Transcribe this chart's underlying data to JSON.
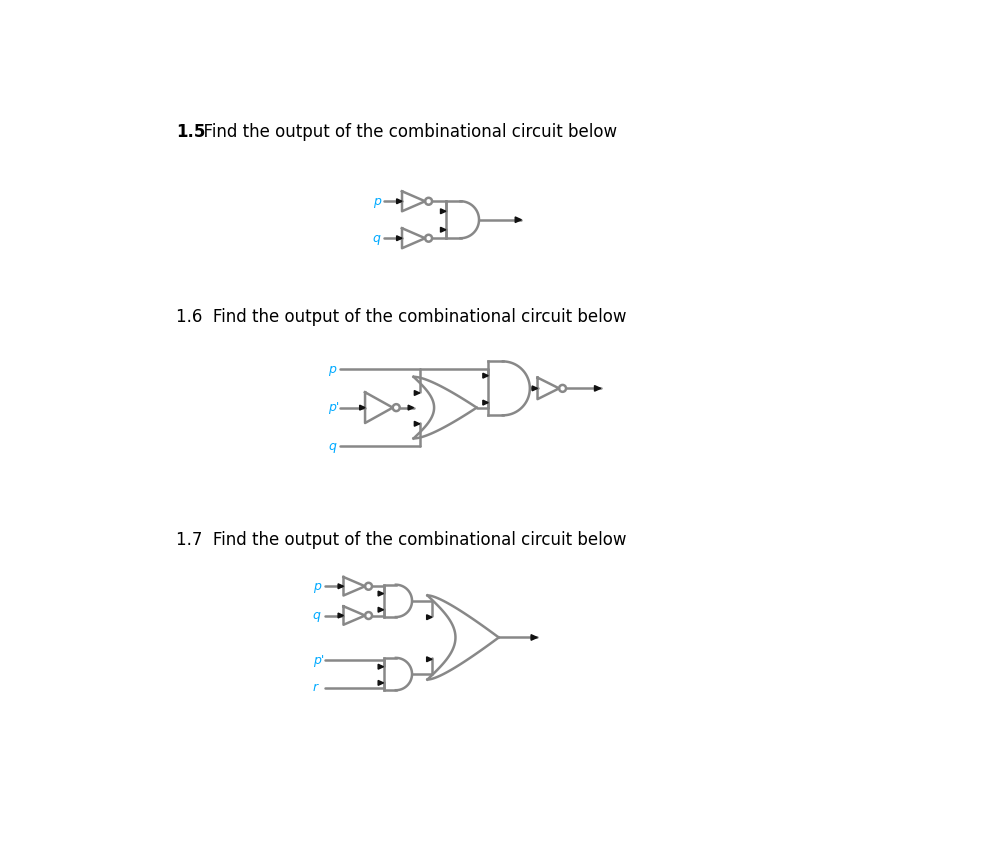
{
  "title15": "1.5  Find the output of the combinational circuit below",
  "title16": "1.6  Find the output of the combinational circuit below",
  "title17": "1.7  Find the output of the combinational circuit below",
  "bg_color": "#ffffff",
  "text_color": "#000000",
  "gate_color": "#888888",
  "wire_color": "#888888",
  "arrow_color": "#111111",
  "label_color": "#00aaff",
  "lw": 1.8,
  "title_bold15": "1.5",
  "title_rest15": "  Find the output of the combinational circuit below",
  "title_rest16": "1.6  Find the output of the combinational circuit below",
  "title_rest17": "1.7  Find the output of the combinational circuit below"
}
